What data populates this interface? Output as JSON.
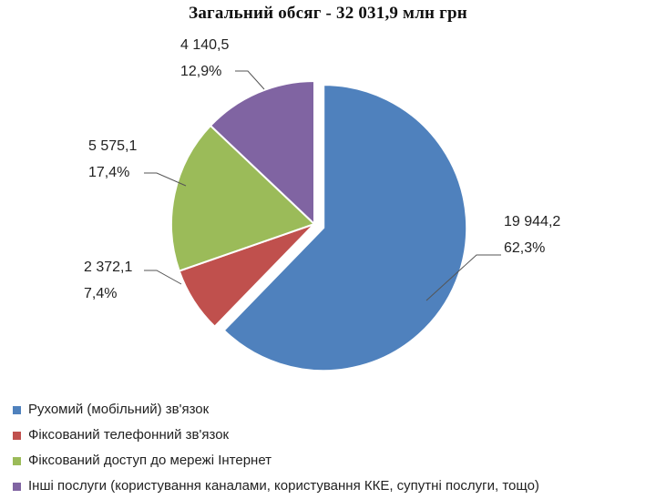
{
  "chart_data": {
    "type": "pie",
    "title": "Загальний обсяг - 32 031,9 млн грн",
    "slices": [
      {
        "name": "Рухомий (мобільний) зв'язок",
        "value": 19944.2,
        "value_label": "19 944,2",
        "percent_label": "62,3%",
        "color": "#4F81BD",
        "exploded": true
      },
      {
        "name": "Фіксований телефонний зв'язок",
        "value": 2372.1,
        "value_label": "2 372,1",
        "percent_label": "7,4%",
        "color": "#C0504D",
        "exploded": false
      },
      {
        "name": "Фіксований доступ до мережі Інтернет",
        "value": 5575.1,
        "value_label": "5 575,1",
        "percent_label": "17,4%",
        "color": "#9BBB59",
        "exploded": false
      },
      {
        "name": "Інші послуги (користування каналами, користування ККЕ, супутні послуги, тощо)",
        "value": 4140.5,
        "value_label": "4 140,5",
        "percent_label": "12,9%",
        "color": "#8064A2",
        "exploded": false
      }
    ],
    "start_angle": "12 o'clock",
    "direction": "clockwise",
    "legend_position": "bottom-left"
  }
}
